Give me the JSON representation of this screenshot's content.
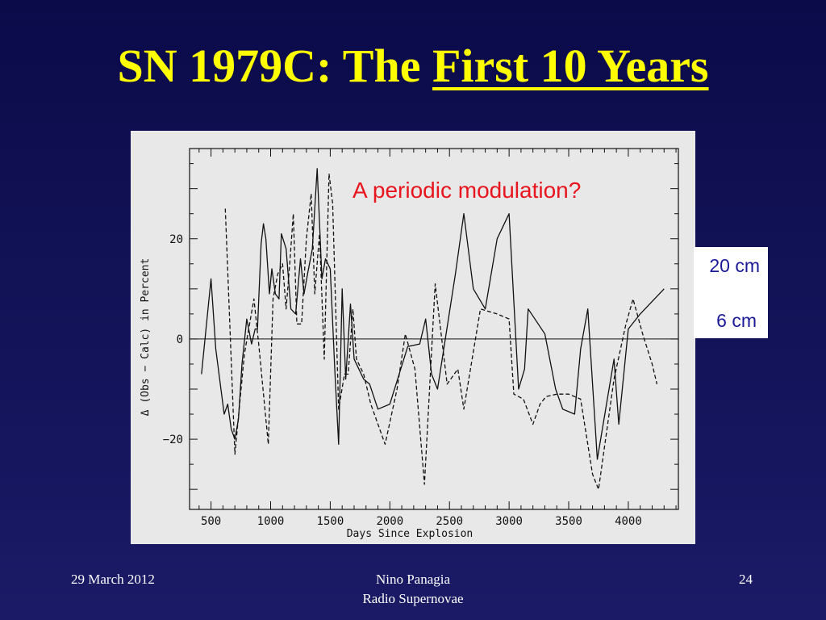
{
  "slide": {
    "title_prefix": "SN 1979C: The ",
    "title_underlined": "First 10 Years",
    "footer_left": "29 March 2012",
    "footer_center_line1": "Nino Panagia",
    "footer_center_line2": "Radio Supernovae",
    "footer_right": "24"
  },
  "chart_data": {
    "type": "line",
    "title": "",
    "annotation": "A periodic modulation?",
    "xlabel": "Days Since Explosion",
    "ylabel": "Δ (Obs − Calc) in Percent",
    "xlim": [
      320,
      4420
    ],
    "ylim": [
      -34,
      38
    ],
    "xticks": [
      500,
      1000,
      1500,
      2000,
      2500,
      3000,
      3500,
      4000
    ],
    "yticks": [
      -20,
      0,
      20
    ],
    "zero_line": true,
    "grid": false,
    "legend_position": "right",
    "series": [
      {
        "name": "20 cm",
        "style": "solid",
        "points": [
          [
            420,
            -7
          ],
          [
            500,
            12
          ],
          [
            540,
            -2
          ],
          [
            610,
            -15
          ],
          [
            640,
            -13
          ],
          [
            670,
            -18
          ],
          [
            700,
            -20
          ],
          [
            730,
            -16
          ],
          [
            760,
            -5
          ],
          [
            800,
            4
          ],
          [
            840,
            -1
          ],
          [
            870,
            2
          ],
          [
            890,
            2
          ],
          [
            920,
            19
          ],
          [
            940,
            23
          ],
          [
            960,
            20
          ],
          [
            990,
            9
          ],
          [
            1010,
            14
          ],
          [
            1040,
            9
          ],
          [
            1070,
            8
          ],
          [
            1090,
            21
          ],
          [
            1130,
            18
          ],
          [
            1170,
            6
          ],
          [
            1210,
            5
          ],
          [
            1250,
            16
          ],
          [
            1280,
            9
          ],
          [
            1310,
            13
          ],
          [
            1350,
            18
          ],
          [
            1390,
            34
          ],
          [
            1430,
            12
          ],
          [
            1460,
            16
          ],
          [
            1500,
            14
          ],
          [
            1540,
            -7
          ],
          [
            1570,
            -21
          ],
          [
            1600,
            10
          ],
          [
            1630,
            -8
          ],
          [
            1670,
            7
          ],
          [
            1700,
            -4
          ],
          [
            1740,
            -6
          ],
          [
            1780,
            -8
          ],
          [
            1830,
            -9
          ],
          [
            1900,
            -14
          ],
          [
            2000,
            -13
          ],
          [
            2150,
            -1.5
          ],
          [
            2250,
            -1
          ],
          [
            2300,
            4
          ],
          [
            2350,
            -7
          ],
          [
            2400,
            -10
          ],
          [
            2550,
            13
          ],
          [
            2620,
            25
          ],
          [
            2700,
            10
          ],
          [
            2800,
            6
          ],
          [
            2900,
            20
          ],
          [
            3000,
            25
          ],
          [
            3080,
            -10
          ],
          [
            3130,
            -6
          ],
          [
            3160,
            6
          ],
          [
            3300,
            1
          ],
          [
            3390,
            -10
          ],
          [
            3450,
            -14
          ],
          [
            3550,
            -15
          ],
          [
            3600,
            -2
          ],
          [
            3660,
            6
          ],
          [
            3740,
            -24
          ],
          [
            3880,
            -4
          ],
          [
            3920,
            -17
          ],
          [
            4000,
            2
          ],
          [
            4100,
            5
          ],
          [
            4300,
            10
          ]
        ]
      },
      {
        "name": "6 cm",
        "style": "dashed",
        "points": [
          [
            620,
            26
          ],
          [
            700,
            -23
          ],
          [
            780,
            -3
          ],
          [
            860,
            8
          ],
          [
            900,
            -1
          ],
          [
            980,
            -21
          ],
          [
            1020,
            8
          ],
          [
            1060,
            13
          ],
          [
            1100,
            15
          ],
          [
            1130,
            6
          ],
          [
            1160,
            15
          ],
          [
            1190,
            25
          ],
          [
            1220,
            3
          ],
          [
            1260,
            3
          ],
          [
            1300,
            20
          ],
          [
            1340,
            29
          ],
          [
            1370,
            9
          ],
          [
            1410,
            21
          ],
          [
            1450,
            -4
          ],
          [
            1490,
            33
          ],
          [
            1520,
            27
          ],
          [
            1570,
            -14
          ],
          [
            1620,
            -7
          ],
          [
            1650,
            -7
          ],
          [
            1690,
            6
          ],
          [
            1720,
            -4
          ],
          [
            1780,
            -7
          ],
          [
            1840,
            -13
          ],
          [
            1960,
            -21
          ],
          [
            2060,
            -10
          ],
          [
            2130,
            1
          ],
          [
            2210,
            -6
          ],
          [
            2290,
            -29
          ],
          [
            2380,
            11
          ],
          [
            2480,
            -9
          ],
          [
            2570,
            -6
          ],
          [
            2620,
            -14
          ],
          [
            2760,
            6
          ],
          [
            2900,
            5
          ],
          [
            3000,
            4
          ],
          [
            3040,
            -11
          ],
          [
            3120,
            -12
          ],
          [
            3200,
            -17
          ],
          [
            3260,
            -13
          ],
          [
            3310,
            -11.5
          ],
          [
            3400,
            -11
          ],
          [
            3500,
            -11
          ],
          [
            3600,
            -12
          ],
          [
            3700,
            -27
          ],
          [
            3750,
            -30
          ],
          [
            3880,
            -8
          ],
          [
            3980,
            3
          ],
          [
            4040,
            8
          ],
          [
            4120,
            1
          ],
          [
            4200,
            -5
          ],
          [
            4240,
            -9
          ]
        ]
      }
    ]
  }
}
